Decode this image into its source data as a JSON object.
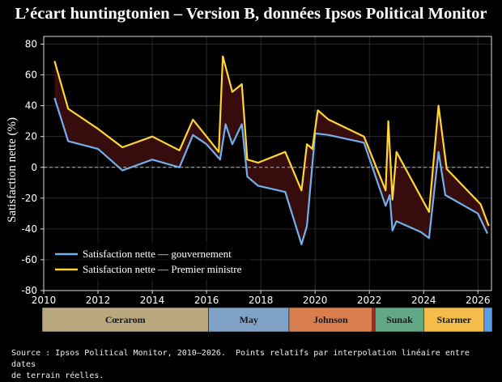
{
  "title": "L’écart huntingtonien – Version B, données Ipsos Political Monitor",
  "source": "Source : Ipsos Political Monitor, 2010–2026.  Points relatifs par interpolation linéaire entre dates\nde terrain réelles.",
  "chart_data": {
    "type": "line",
    "ylabel": "Satisfaction nette (%)",
    "xlabel": "",
    "xlim": [
      2010,
      2026.5
    ],
    "ylim": [
      -80,
      85
    ],
    "xticks": [
      2010,
      2012,
      2014,
      2016,
      2018,
      2020,
      2022,
      2024,
      2026
    ],
    "yticks": [
      -80,
      -60,
      -40,
      -20,
      0,
      20,
      40,
      60,
      80
    ],
    "grid": true,
    "zero_line": true,
    "legend_placement": "lower-left",
    "fill_between": {
      "color": "#3a0d0d"
    },
    "series": [
      {
        "name": "Satisfaction nette — gouvernement",
        "color": "#6fb2ee",
        "x": [
          2010.4,
          2010.9,
          2012.0,
          2012.9,
          2014.0,
          2015.0,
          2015.5,
          2016.0,
          2016.5,
          2016.7,
          2016.95,
          2017.3,
          2017.5,
          2017.9,
          2018.9,
          2019.5,
          2019.7,
          2020.0,
          2020.5,
          2021.8,
          2022.6,
          2022.75,
          2022.85,
          2023.0,
          2023.9,
          2024.2,
          2024.55,
          2024.8,
          2026.0,
          2026.35
        ],
        "y": [
          45,
          17,
          12,
          -2,
          5,
          0,
          21,
          15,
          5,
          28,
          15,
          28,
          -6,
          -12,
          -16,
          -50,
          -38,
          22,
          21,
          16,
          -25,
          -18,
          -41,
          -35,
          -42,
          -46,
          10,
          -18,
          -30,
          -43
        ]
      },
      {
        "name": "Satisfaction nette — Premier ministre",
        "color": "#ffd633",
        "x": [
          2010.4,
          2010.9,
          2012.0,
          2012.9,
          2014.0,
          2015.0,
          2015.5,
          2016.0,
          2016.45,
          2016.6,
          2016.95,
          2017.3,
          2017.5,
          2017.9,
          2018.9,
          2019.5,
          2019.7,
          2019.9,
          2020.1,
          2020.5,
          2021.8,
          2022.6,
          2022.7,
          2022.85,
          2023.0,
          2024.2,
          2024.55,
          2024.85,
          2026.1,
          2026.4
        ],
        "y": [
          69,
          38,
          25,
          13,
          20,
          11,
          31,
          20,
          10,
          72,
          49,
          54,
          5,
          3,
          10,
          -15,
          15,
          12,
          37,
          31,
          20,
          -15,
          30,
          -21,
          10,
          -29,
          40,
          -1,
          -24,
          -38
        ]
      }
    ],
    "eras": [
      {
        "label": "Cœrarom",
        "start": 2010.0,
        "end": 2016.1,
        "color": "#b9a77f"
      },
      {
        "label": "May",
        "start": 2016.1,
        "end": 2019.05,
        "color": "#7fa2c6"
      },
      {
        "label": "Johnson",
        "start": 2019.05,
        "end": 2022.1,
        "color": "#d97f4f"
      },
      {
        "label": "",
        "start": 2022.1,
        "end": 2022.2,
        "color": "#b32a1e"
      },
      {
        "label": "Sunak",
        "start": 2022.2,
        "end": 2024.0,
        "color": "#62a886"
      },
      {
        "label": "Starmer",
        "start": 2024.0,
        "end": 2026.2,
        "color": "#f4bd4a"
      },
      {
        "label": "",
        "start": 2026.2,
        "end": 2026.5,
        "color": "#5d9ee3"
      }
    ]
  }
}
